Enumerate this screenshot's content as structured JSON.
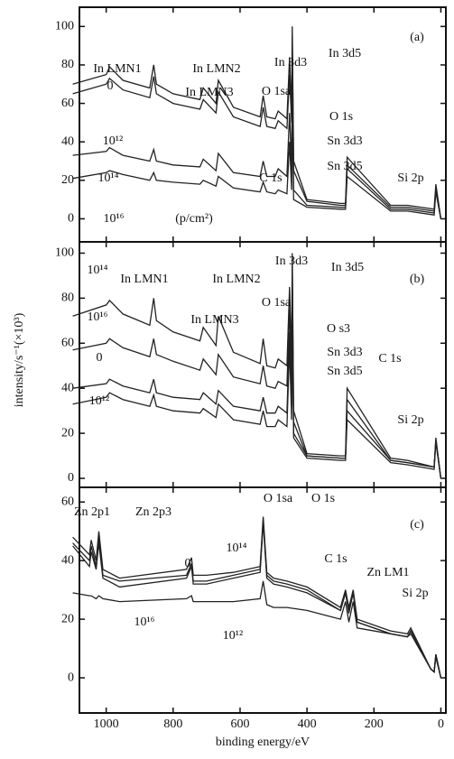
{
  "chart_data": [
    {
      "type": "line",
      "label": "(a)",
      "ylabel": "intensity/s⁻¹(×10³)",
      "note": "(p/cm²)",
      "x": [
        1100,
        1000,
        990,
        950,
        870,
        858,
        850,
        800,
        720,
        710,
        672,
        665,
        620,
        540,
        531,
        520,
        495,
        486,
        460,
        452,
        446,
        444,
        440,
        400,
        300,
        285,
        280,
        150,
        100,
        20,
        15,
        0
      ],
      "xlim": [
        1080,
        -15
      ],
      "xticks": [
        1000,
        800,
        600,
        400,
        200,
        0
      ],
      "ylim": [
        -12,
        110
      ],
      "yticks": [
        0,
        20,
        40,
        60,
        80,
        100
      ],
      "series": [
        {
          "name": "0",
          "color": "#222222",
          "values": [
            70,
            75,
            79,
            72,
            68,
            80,
            70,
            65,
            62,
            68,
            60,
            72,
            58,
            53,
            64,
            53,
            52,
            56,
            52,
            84,
            55,
            100,
            30,
            10,
            8,
            8,
            32,
            7,
            7,
            5,
            18,
            0
          ]
        },
        {
          "name": "10¹²",
          "color": "#222222",
          "values": [
            65,
            70,
            73,
            67,
            63,
            74,
            65,
            60,
            57,
            62,
            55,
            66,
            53,
            48,
            58,
            48,
            47,
            51,
            47,
            75,
            50,
            95,
            25,
            9,
            7,
            7,
            28,
            6,
            6,
            4,
            16,
            0
          ]
        },
        {
          "name": "10¹⁴",
          "color": "#222222",
          "values": [
            33,
            35,
            37,
            33,
            30,
            36,
            30,
            28,
            27,
            31,
            25,
            34,
            24,
            22,
            30,
            22,
            22,
            26,
            22,
            55,
            25,
            80,
            15,
            7,
            6,
            6,
            26,
            5,
            5,
            3,
            15,
            0
          ]
        },
        {
          "name": "10¹⁶",
          "color": "#222222",
          "values": [
            21,
            24,
            25,
            23,
            20,
            24,
            20,
            19,
            18,
            20,
            17,
            22,
            16,
            14,
            19,
            14,
            13,
            15,
            13,
            40,
            15,
            60,
            10,
            6,
            5,
            5,
            22,
            4,
            4,
            2,
            14,
            0
          ]
        }
      ],
      "annotations": [
        "In LMN1",
        "In LMN2",
        "In LMN3",
        "In 3d3",
        "In 3d5",
        "O 1sa",
        "O 1s",
        "Sn 3d3",
        "Sn 3d5",
        "C 1s",
        "Si 2p"
      ]
    },
    {
      "type": "line",
      "label": "(b)",
      "x": [
        1100,
        1000,
        990,
        950,
        870,
        858,
        850,
        800,
        720,
        710,
        672,
        665,
        620,
        540,
        531,
        520,
        495,
        486,
        460,
        452,
        446,
        444,
        440,
        400,
        300,
        285,
        280,
        150,
        100,
        20,
        15,
        0
      ],
      "xlim": [
        1080,
        -15
      ],
      "xticks": [
        1000,
        800,
        600,
        400,
        200,
        0
      ],
      "ylim": [
        -4,
        105
      ],
      "yticks": [
        0,
        20,
        40,
        60,
        80,
        100
      ],
      "series": [
        {
          "name": "10¹⁴",
          "color": "#222222",
          "values": [
            72,
            77,
            79,
            73,
            68,
            80,
            70,
            65,
            61,
            67,
            59,
            72,
            56,
            51,
            62,
            50,
            49,
            53,
            50,
            85,
            52,
            100,
            30,
            11,
            10,
            10,
            40,
            9,
            8,
            5,
            18,
            0
          ]
        },
        {
          "name": "10¹⁶",
          "color": "#222222",
          "values": [
            57,
            60,
            62,
            58,
            54,
            62,
            55,
            52,
            48,
            53,
            46,
            55,
            45,
            42,
            50,
            41,
            40,
            43,
            41,
            75,
            43,
            95,
            25,
            10,
            9,
            9,
            35,
            8,
            7,
            5,
            17,
            0
          ]
        },
        {
          "name": "0",
          "color": "#222222",
          "values": [
            40,
            42,
            44,
            41,
            38,
            44,
            38,
            36,
            35,
            38,
            33,
            39,
            32,
            30,
            36,
            29,
            29,
            32,
            29,
            65,
            32,
            88,
            20,
            10,
            9,
            9,
            30,
            8,
            7,
            5,
            17,
            0
          ]
        },
        {
          "name": "10¹²",
          "color": "#222222",
          "values": [
            33,
            36,
            38,
            35,
            32,
            37,
            32,
            30,
            29,
            31,
            27,
            33,
            26,
            24,
            30,
            23,
            23,
            26,
            23,
            58,
            26,
            82,
            18,
            9,
            8,
            8,
            26,
            7,
            6,
            4,
            16,
            0
          ]
        }
      ],
      "annotations": [
        "In LMN1",
        "In LMN2",
        "In 3d3",
        "In 3d5",
        "O 1sa",
        "In LMN3",
        "O s3",
        "Sn 3d3",
        "Sn 3d5",
        "C 1s",
        "Si 2p"
      ]
    },
    {
      "type": "line",
      "label": "(c)",
      "xlabel": "binding energy/eV",
      "x": [
        1100,
        1050,
        1045,
        1030,
        1022,
        1010,
        960,
        760,
        745,
        740,
        700,
        620,
        540,
        531,
        520,
        500,
        460,
        400,
        300,
        285,
        275,
        262,
        250,
        150,
        100,
        90,
        30,
        20,
        15,
        0
      ],
      "xlim": [
        1080,
        -15
      ],
      "xticks": [
        1000,
        800,
        600,
        400,
        200,
        0
      ],
      "ylim": [
        -12,
        65
      ],
      "yticks": [
        0,
        20,
        40,
        60
      ],
      "series": [
        {
          "name": "0",
          "color": "#222222",
          "values": [
            48,
            42,
            47,
            40,
            50,
            37,
            34,
            37,
            41,
            35,
            35,
            36,
            38,
            55,
            36,
            34,
            33,
            31,
            24,
            30,
            24,
            30,
            20,
            16,
            15,
            17,
            3,
            2,
            8,
            0
          ]
        },
        {
          "name": "10¹⁴",
          "color": "#222222",
          "values": [
            46,
            40,
            45,
            38,
            48,
            35,
            33,
            35,
            39,
            33,
            33,
            35,
            37,
            54,
            35,
            33,
            32,
            30,
            23,
            29,
            23,
            29,
            19,
            15,
            14,
            16,
            3,
            2,
            8,
            0
          ]
        },
        {
          "name": "10¹²",
          "color": "#222222",
          "values": [
            45,
            38,
            43,
            37,
            46,
            34,
            31,
            34,
            38,
            32,
            32,
            34,
            36,
            53,
            34,
            32,
            31,
            29,
            23,
            29,
            22,
            29,
            19,
            15,
            14,
            16,
            3,
            2,
            8,
            0
          ]
        },
        {
          "name": "10¹⁶",
          "color": "#222222",
          "values": [
            29,
            28,
            28,
            27,
            28,
            27,
            26,
            27,
            28,
            26,
            26,
            26,
            27,
            33,
            25,
            24,
            24,
            23,
            20,
            26,
            19,
            26,
            17,
            15,
            14,
            15,
            3,
            2,
            7,
            0
          ]
        }
      ],
      "annotations": [
        "Zn 2p1",
        "Zn 2p3",
        "O 1sa",
        "O 1s",
        "C 1s",
        "Zn LM1",
        "Si 2p"
      ]
    }
  ]
}
